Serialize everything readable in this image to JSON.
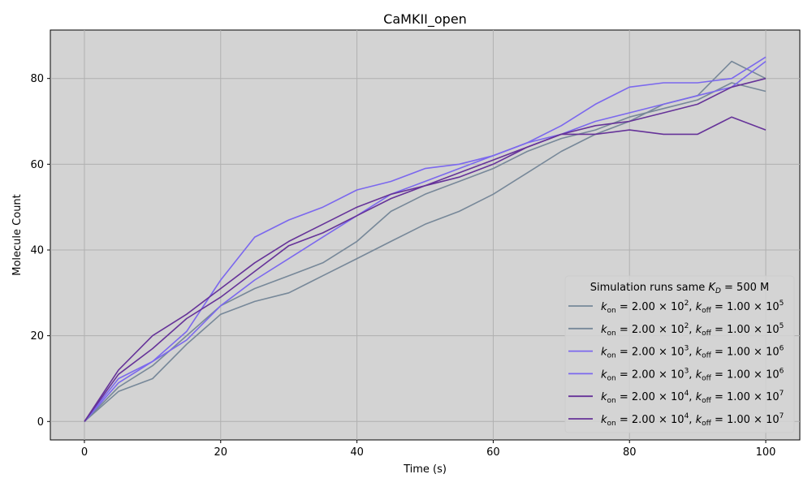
{
  "chart_data": {
    "type": "line",
    "title": "CaMKII_open",
    "xlabel": "Time (s)",
    "ylabel": "Molecule Count",
    "xlim": [
      -5,
      105
    ],
    "ylim": [
      -4.3,
      91.3
    ],
    "xticks": [
      0,
      20,
      40,
      60,
      80,
      100
    ],
    "yticks": [
      0,
      20,
      40,
      60,
      80
    ],
    "grid": true,
    "background": "#d3d3d3",
    "legend": {
      "title_prefix": "Simulation runs same ",
      "title_symbol": "K",
      "title_sub": "D",
      "title_suffix": " = 500 M",
      "placement": "lower right"
    },
    "series": [
      {
        "name": "k_on = 2.00×10^2, k_off = 1.00×10^5",
        "kon_mant": "2.00",
        "kon_exp": "2",
        "koff_mant": "1.00",
        "koff_exp": "5",
        "color": "#778899",
        "x": [
          0,
          5,
          10,
          15,
          20,
          25,
          30,
          35,
          40,
          45,
          50,
          55,
          60,
          65,
          70,
          75,
          80,
          85,
          90,
          95,
          100
        ],
        "y": [
          0,
          8,
          13,
          20,
          27,
          31,
          34,
          37,
          42,
          49,
          53,
          56,
          59,
          63,
          66,
          68,
          71,
          73,
          75,
          79,
          77
        ]
      },
      {
        "name": "k_on = 2.00×10^2, k_off = 1.00×10^5",
        "kon_mant": "2.00",
        "kon_exp": "2",
        "koff_mant": "1.00",
        "koff_exp": "5",
        "color": "#778899",
        "x": [
          0,
          5,
          10,
          15,
          20,
          25,
          30,
          35,
          40,
          45,
          50,
          55,
          60,
          65,
          70,
          75,
          80,
          85,
          90,
          95,
          100
        ],
        "y": [
          0,
          7,
          10,
          18,
          25,
          28,
          30,
          34,
          38,
          42,
          46,
          49,
          53,
          58,
          63,
          67,
          70,
          74,
          76,
          84,
          80
        ]
      },
      {
        "name": "k_on = 2.00×10^3, k_off = 1.00×10^6",
        "kon_mant": "2.00",
        "kon_exp": "3",
        "koff_mant": "1.00",
        "koff_exp": "6",
        "color": "#7b68ee",
        "x": [
          0,
          5,
          10,
          15,
          20,
          25,
          30,
          35,
          40,
          45,
          50,
          55,
          60,
          65,
          70,
          75,
          80,
          85,
          90,
          95,
          100
        ],
        "y": [
          0,
          10,
          14,
          19,
          27,
          33,
          38,
          43,
          48,
          53,
          56,
          59,
          62,
          65,
          67,
          70,
          72,
          74,
          76,
          78,
          84
        ]
      },
      {
        "name": "k_on = 2.00×10^3, k_off = 1.00×10^6",
        "kon_mant": "2.00",
        "kon_exp": "3",
        "koff_mant": "1.00",
        "koff_exp": "6",
        "color": "#7b68ee",
        "x": [
          0,
          5,
          10,
          15,
          20,
          25,
          30,
          35,
          40,
          45,
          50,
          55,
          60,
          65,
          70,
          75,
          80,
          85,
          90,
          95,
          100
        ],
        "y": [
          0,
          9,
          14,
          21,
          33,
          43,
          47,
          50,
          54,
          56,
          59,
          60,
          62,
          65,
          69,
          74,
          78,
          79,
          79,
          80,
          85
        ]
      },
      {
        "name": "k_on = 2.00×10^4, k_off = 1.00×10^7",
        "kon_mant": "2.00",
        "kon_exp": "4",
        "koff_mant": "1.00",
        "koff_exp": "7",
        "color": "#663399",
        "x": [
          0,
          5,
          10,
          15,
          20,
          25,
          30,
          35,
          40,
          45,
          50,
          55,
          60,
          65,
          70,
          75,
          80,
          85,
          90,
          95,
          100
        ],
        "y": [
          0,
          11,
          17,
          24,
          29,
          35,
          41,
          44,
          48,
          52,
          55,
          58,
          61,
          64,
          67,
          69,
          70,
          72,
          74,
          78,
          80
        ]
      },
      {
        "name": "k_on = 2.00×10^4, k_off = 1.00×10^7",
        "kon_mant": "2.00",
        "kon_exp": "4",
        "koff_mant": "1.00",
        "koff_exp": "7",
        "color": "#663399",
        "x": [
          0,
          5,
          10,
          15,
          20,
          25,
          30,
          35,
          40,
          45,
          50,
          55,
          60,
          65,
          70,
          75,
          80,
          85,
          90,
          95,
          100
        ],
        "y": [
          0,
          12,
          20,
          25,
          31,
          37,
          42,
          46,
          50,
          53,
          55,
          57,
          60,
          64,
          67,
          67,
          68,
          67,
          67,
          71,
          68
        ]
      }
    ]
  }
}
